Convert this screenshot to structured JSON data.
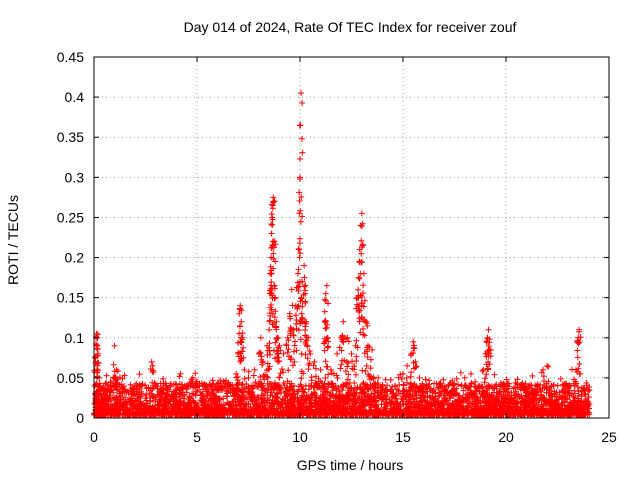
{
  "chart_data": {
    "type": "scatter",
    "title": "Day 014 of 2024, Rate Of TEC Index for receiver zouf",
    "xlabel": "GPS time / hours",
    "ylabel": "ROTI / TECUs",
    "xlim": [
      0,
      25
    ],
    "ylim": [
      0,
      0.45
    ],
    "x_ticks": [
      0,
      5,
      10,
      15,
      20,
      25
    ],
    "x_tick_labels": [
      "0",
      "5",
      "10",
      "15",
      "20",
      "25"
    ],
    "y_ticks": [
      0,
      0.05,
      0.1,
      0.15,
      0.2,
      0.25,
      0.3,
      0.35,
      0.4,
      0.45
    ],
    "y_tick_labels": [
      "0",
      "0.05",
      "0.1",
      "0.15",
      "0.2",
      "0.25",
      "0.3",
      "0.35",
      "0.4",
      "0.45"
    ],
    "grid": true,
    "marker": "+",
    "marker_color": "#ff0000",
    "series": [
      {
        "name": "ROTI",
        "points": [
          [
            0.05,
            0.03
          ],
          [
            0.08,
            0.07
          ],
          [
            0.1,
            0.1
          ],
          [
            0.12,
            0.105
          ],
          [
            0.15,
            0.09
          ],
          [
            0.2,
            0.08
          ],
          [
            0.25,
            0.05
          ],
          [
            0.3,
            0.04
          ],
          [
            0.5,
            0.03
          ],
          [
            0.8,
            0.045
          ],
          [
            1.0,
            0.09
          ],
          [
            1.1,
            0.06
          ],
          [
            1.5,
            0.035
          ],
          [
            2.0,
            0.03
          ],
          [
            2.8,
            0.07
          ],
          [
            2.85,
            0.065
          ],
          [
            3.0,
            0.04
          ],
          [
            3.5,
            0.03
          ],
          [
            4.0,
            0.035
          ],
          [
            4.2,
            0.055
          ],
          [
            4.8,
            0.05
          ],
          [
            5.0,
            0.045
          ],
          [
            5.5,
            0.03
          ],
          [
            6.0,
            0.035
          ],
          [
            6.5,
            0.04
          ],
          [
            6.9,
            0.055
          ],
          [
            7.0,
            0.08
          ],
          [
            7.05,
            0.13
          ],
          [
            7.1,
            0.14
          ],
          [
            7.15,
            0.12
          ],
          [
            7.2,
            0.1
          ],
          [
            7.3,
            0.06
          ],
          [
            7.5,
            0.05
          ],
          [
            7.8,
            0.06
          ],
          [
            8.0,
            0.08
          ],
          [
            8.1,
            0.1
          ],
          [
            8.2,
            0.07
          ],
          [
            8.4,
            0.09
          ],
          [
            8.5,
            0.11
          ],
          [
            8.55,
            0.18
          ],
          [
            8.6,
            0.2
          ],
          [
            8.62,
            0.23
          ],
          [
            8.65,
            0.25
          ],
          [
            8.68,
            0.265
          ],
          [
            8.7,
            0.275
          ],
          [
            8.72,
            0.27
          ],
          [
            8.75,
            0.22
          ],
          [
            8.8,
            0.15
          ],
          [
            8.85,
            0.12
          ],
          [
            8.9,
            0.1
          ],
          [
            9.0,
            0.09
          ],
          [
            9.2,
            0.08
          ],
          [
            9.4,
            0.1
          ],
          [
            9.5,
            0.13
          ],
          [
            9.6,
            0.16
          ],
          [
            9.7,
            0.11
          ],
          [
            9.8,
            0.14
          ],
          [
            9.9,
            0.18
          ],
          [
            9.95,
            0.21
          ],
          [
            10.0,
            0.3
          ],
          [
            10.02,
            0.365
          ],
          [
            10.05,
            0.405
          ],
          [
            10.08,
            0.13
          ],
          [
            10.1,
            0.17
          ],
          [
            10.2,
            0.19
          ],
          [
            10.25,
            0.155
          ],
          [
            10.3,
            0.12
          ],
          [
            10.4,
            0.1
          ],
          [
            10.5,
            0.08
          ],
          [
            10.7,
            0.07
          ],
          [
            11.0,
            0.06
          ],
          [
            11.2,
            0.12
          ],
          [
            11.25,
            0.155
          ],
          [
            11.3,
            0.165
          ],
          [
            11.35,
            0.1
          ],
          [
            11.5,
            0.06
          ],
          [
            11.8,
            0.08
          ],
          [
            12.0,
            0.1
          ],
          [
            12.1,
            0.12
          ],
          [
            12.3,
            0.1
          ],
          [
            12.5,
            0.08
          ],
          [
            12.7,
            0.09
          ],
          [
            12.8,
            0.15
          ],
          [
            12.85,
            0.175
          ],
          [
            12.9,
            0.21
          ],
          [
            12.95,
            0.24
          ],
          [
            13.0,
            0.255
          ],
          [
            13.05,
            0.215
          ],
          [
            13.1,
            0.18
          ],
          [
            13.2,
            0.12
          ],
          [
            13.3,
            0.09
          ],
          [
            13.5,
            0.085
          ],
          [
            13.8,
            0.05
          ],
          [
            14.0,
            0.04
          ],
          [
            14.5,
            0.03
          ],
          [
            15.0,
            0.055
          ],
          [
            15.2,
            0.065
          ],
          [
            15.4,
            0.08
          ],
          [
            15.5,
            0.095
          ],
          [
            15.6,
            0.07
          ],
          [
            15.8,
            0.05
          ],
          [
            16.0,
            0.04
          ],
          [
            16.5,
            0.035
          ],
          [
            17.0,
            0.04
          ],
          [
            17.5,
            0.03
          ],
          [
            18.0,
            0.05
          ],
          [
            18.3,
            0.055
          ],
          [
            18.5,
            0.045
          ],
          [
            18.9,
            0.06
          ],
          [
            19.0,
            0.08
          ],
          [
            19.1,
            0.1
          ],
          [
            19.15,
            0.11
          ],
          [
            19.2,
            0.085
          ],
          [
            19.5,
            0.04
          ],
          [
            20.0,
            0.035
          ],
          [
            20.5,
            0.03
          ],
          [
            21.0,
            0.035
          ],
          [
            21.5,
            0.04
          ],
          [
            21.8,
            0.06
          ],
          [
            22.0,
            0.065
          ],
          [
            22.3,
            0.04
          ],
          [
            22.8,
            0.035
          ],
          [
            23.0,
            0.04
          ],
          [
            23.4,
            0.06
          ],
          [
            23.5,
            0.1
          ],
          [
            23.55,
            0.11
          ],
          [
            23.6,
            0.055
          ],
          [
            23.8,
            0.03
          ],
          [
            24.0,
            0.02
          ]
        ]
      }
    ]
  }
}
